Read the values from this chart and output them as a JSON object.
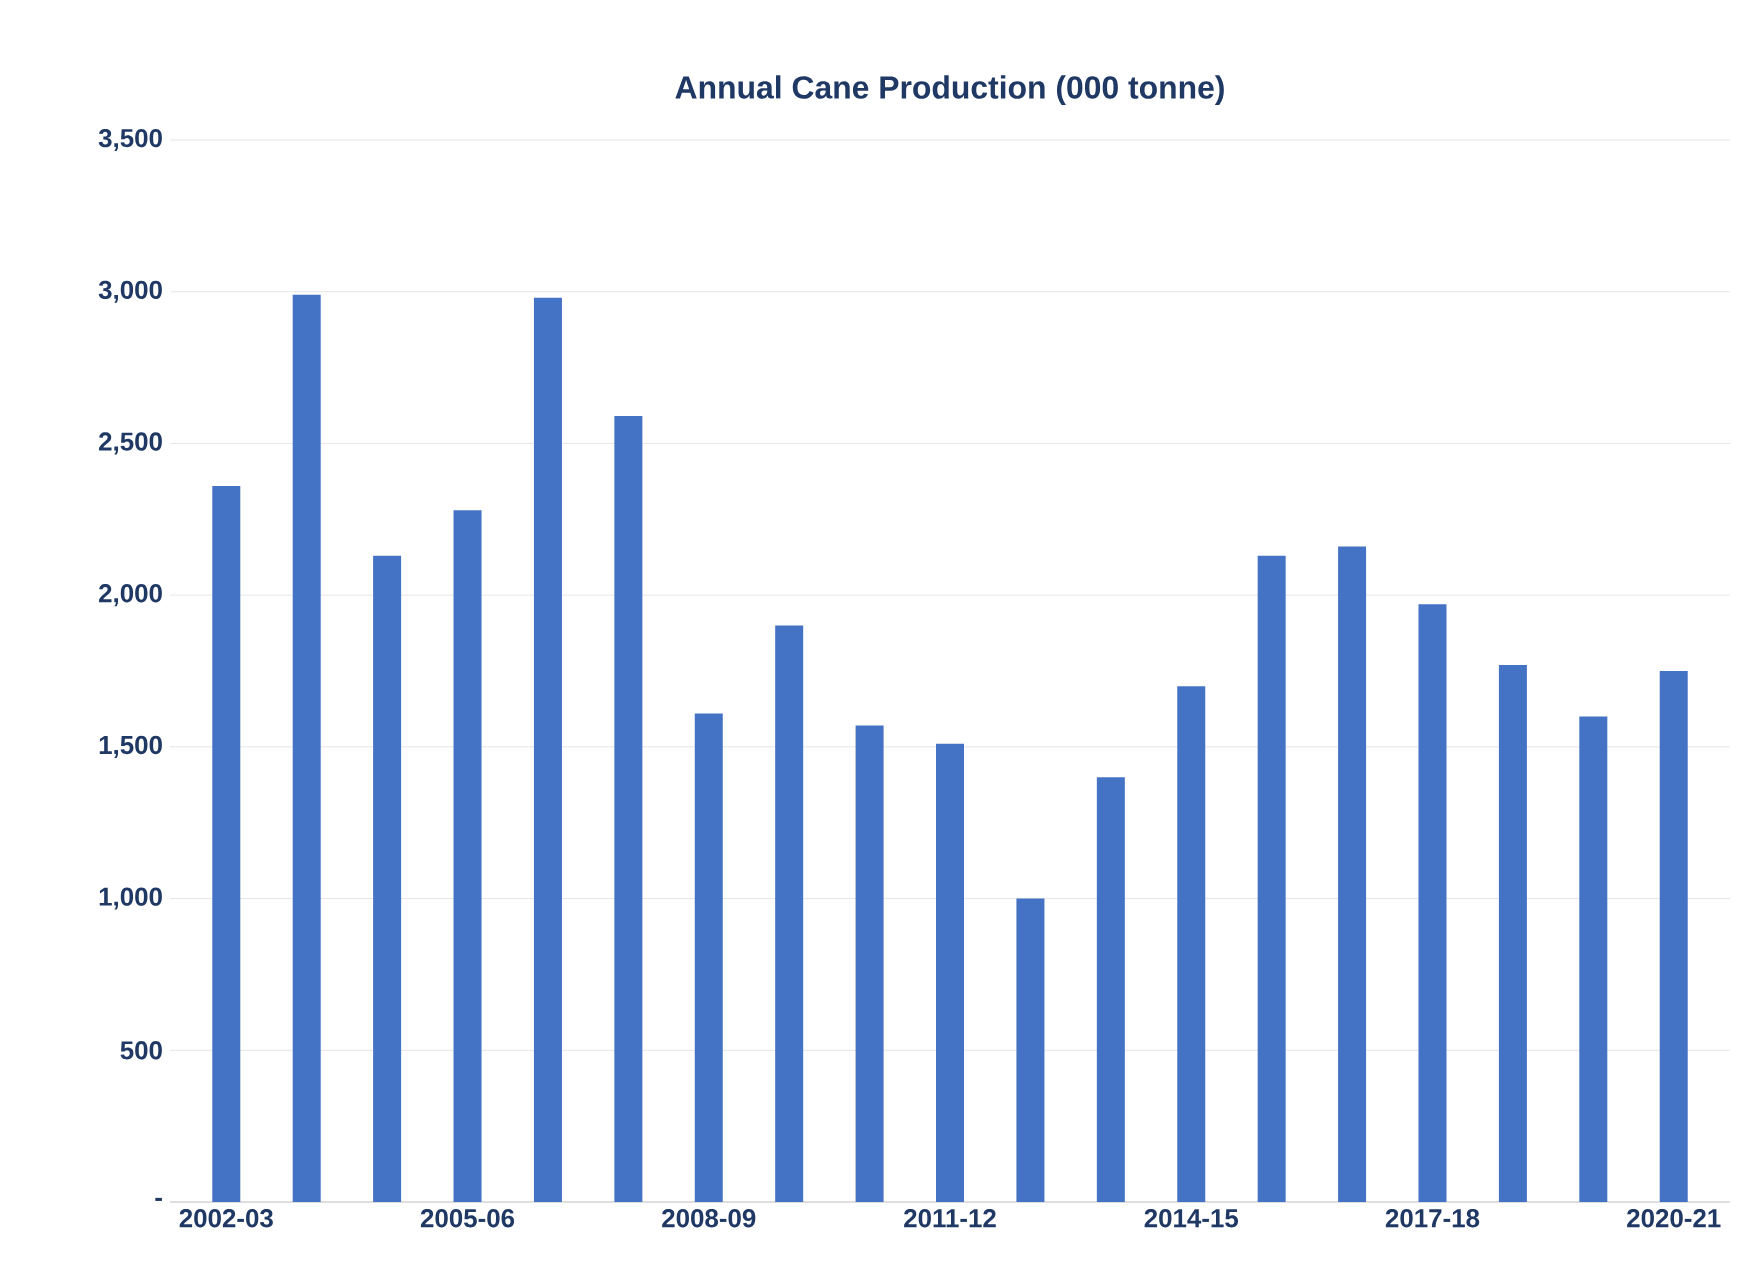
{
  "chart_data": {
    "type": "bar",
    "title": "Annual Cane Production (000 tonne)",
    "categories": [
      "2002-03",
      null,
      null,
      "2005-06",
      null,
      null,
      "2008-09",
      null,
      null,
      "2011-12",
      null,
      null,
      "2014-15",
      null,
      null,
      "2017-18",
      null,
      null,
      "2020-21"
    ],
    "values": [
      2360,
      2990,
      2130,
      2280,
      2980,
      2590,
      1610,
      1900,
      1570,
      1510,
      1000,
      1400,
      1700,
      2130,
      2160,
      1970,
      1770,
      1600,
      1750
    ],
    "color": "#4472c4",
    "ylim": [
      0,
      3500
    ],
    "yticks": [
      {
        "value": 0,
        "label": "-"
      },
      {
        "value": 500,
        "label": "500"
      },
      {
        "value": 1000,
        "label": "1,000"
      },
      {
        "value": 1500,
        "label": "1,500"
      },
      {
        "value": 2000,
        "label": "2,000"
      },
      {
        "value": 2500,
        "label": "2,500"
      },
      {
        "value": 3000,
        "label": "3,000"
      },
      {
        "value": 3500,
        "label": "3,500"
      }
    ],
    "grid": "y"
  }
}
